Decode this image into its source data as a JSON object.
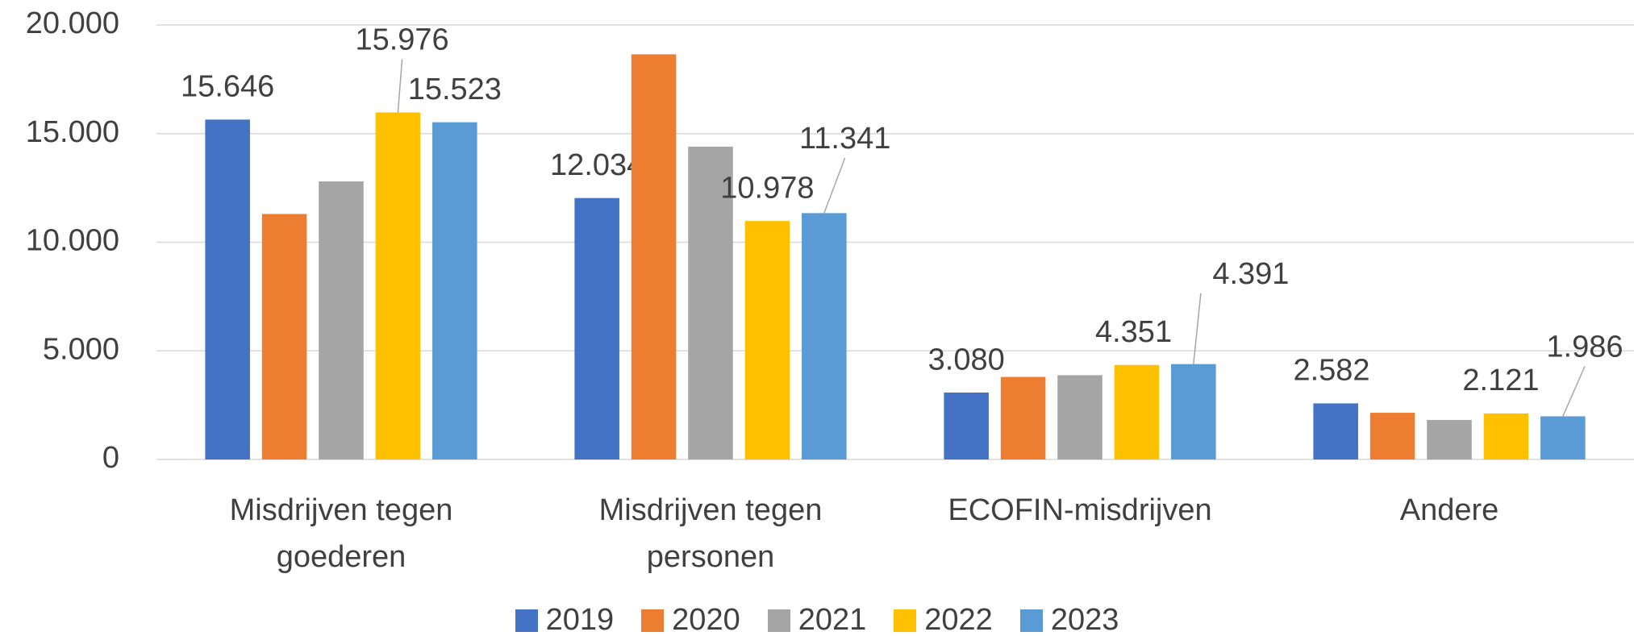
{
  "chart_data": {
    "type": "bar",
    "categories": [
      "Misdrijven tegen goederen",
      "Misdrijven tegen personen",
      "ECOFIN-misdrijven",
      "Andere"
    ],
    "series": [
      {
        "name": "2019",
        "color": "#4472c4",
        "values": [
          15646,
          12034,
          3080,
          2582
        ],
        "value_labels": [
          "15.646",
          "12.034",
          "3.080",
          "2.582"
        ]
      },
      {
        "name": "2020",
        "color": "#ed7d31",
        "values": [
          11300,
          18650,
          3800,
          2150
        ],
        "value_labels": [
          null,
          null,
          null,
          null
        ]
      },
      {
        "name": "2021",
        "color": "#a5a5a5",
        "values": [
          12800,
          14400,
          3880,
          1820
        ],
        "value_labels": [
          null,
          null,
          null,
          null
        ]
      },
      {
        "name": "2022",
        "color": "#ffc000",
        "values": [
          15976,
          10978,
          4351,
          2121
        ],
        "value_labels": [
          "15.976",
          "10.978",
          "4.351",
          "2.121"
        ]
      },
      {
        "name": "2023",
        "color": "#5b9bd5",
        "values": [
          15523,
          11341,
          4391,
          1986
        ],
        "value_labels": [
          "15.523",
          "11.341",
          "4.391",
          "1.986"
        ]
      }
    ],
    "ylim": [
      0,
      20000
    ],
    "yticks": [
      0,
      {
        "value": 5000,
        "label": "5.000"
      },
      {
        "value": 10000,
        "label": "10.000"
      },
      {
        "value": 15000,
        "label": "15.000"
      },
      {
        "value": 20000,
        "label": "20.000"
      }
    ],
    "grid": true,
    "legend": "bottom"
  }
}
